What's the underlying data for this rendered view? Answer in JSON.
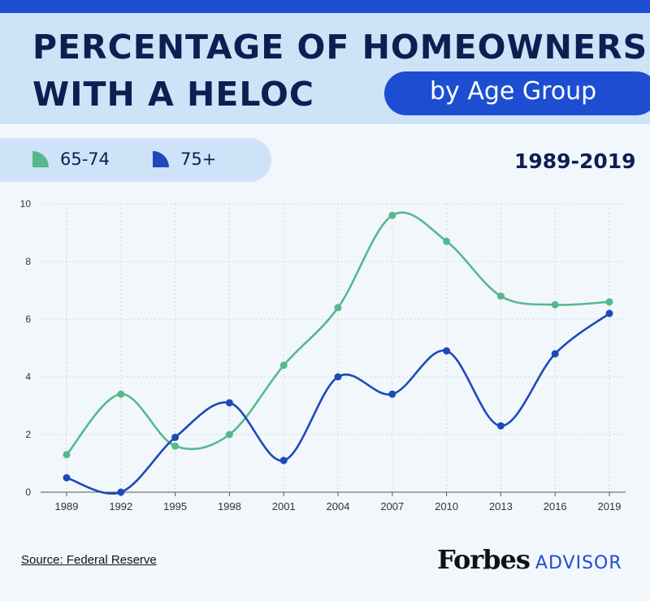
{
  "header": {
    "title_line1": "PERCENTAGE OF HOMEOWNERS",
    "title_line2": "WITH A HELOC",
    "subtitle": "by Age Group"
  },
  "period": "1989-2019",
  "colors": {
    "green": "#55b98c",
    "blue": "#1e49b8",
    "accent": "#1d4ed2",
    "title": "#0f1e52"
  },
  "chart_data": {
    "type": "line",
    "title": "PERCENTAGE OF HOMEOWNERS WITH A HELOC",
    "subtitle": "by Age Group",
    "x": [
      "1989",
      "1992",
      "1995",
      "1998",
      "2001",
      "2004",
      "2007",
      "2010",
      "2013",
      "2016",
      "2019"
    ],
    "series": [
      {
        "name": "65-74",
        "color": "#55b98c",
        "values": [
          1.3,
          3.4,
          1.6,
          2.0,
          4.4,
          6.4,
          9.6,
          8.7,
          6.8,
          6.5,
          6.6
        ]
      },
      {
        "name": "75+",
        "color": "#1e49b8",
        "values": [
          0.5,
          0.0,
          1.9,
          3.1,
          1.1,
          4.0,
          3.4,
          4.9,
          2.3,
          4.8,
          6.2
        ]
      }
    ],
    "ylim": [
      0,
      10
    ],
    "yticks": [
      0,
      2,
      4,
      6,
      8,
      10
    ],
    "xlabel": "",
    "ylabel": "",
    "grid": true,
    "smooth": true,
    "legend": "top-left"
  },
  "footer": {
    "source": "Source: Federal Reserve",
    "brand_name": "Forbes",
    "brand_suffix": "ADVISOR"
  }
}
